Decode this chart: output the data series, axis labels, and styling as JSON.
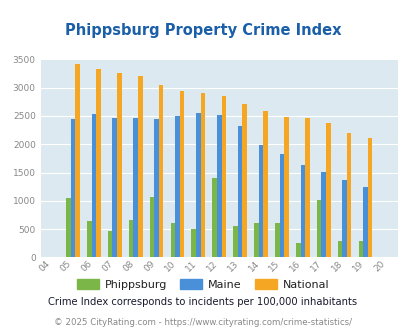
{
  "title": "Phippsburg Property Crime Index",
  "years": [
    2004,
    2005,
    2006,
    2007,
    2008,
    2009,
    2010,
    2011,
    2012,
    2013,
    2014,
    2015,
    2016,
    2017,
    2018,
    2019,
    2020
  ],
  "phippsburg": [
    0,
    1050,
    650,
    470,
    660,
    1075,
    600,
    510,
    1400,
    550,
    600,
    600,
    250,
    1020,
    290,
    290,
    0
  ],
  "maine": [
    0,
    2440,
    2540,
    2460,
    2470,
    2440,
    2500,
    2560,
    2510,
    2320,
    1990,
    1820,
    1640,
    1510,
    1360,
    1240,
    0
  ],
  "national": [
    0,
    3410,
    3330,
    3260,
    3210,
    3040,
    2950,
    2910,
    2850,
    2720,
    2590,
    2490,
    2460,
    2380,
    2200,
    2110,
    0
  ],
  "phippsburg_color": "#7ab648",
  "maine_color": "#4a90d9",
  "national_color": "#f5a623",
  "bg_color": "#dce9f0",
  "title_color": "#1a5fa8",
  "subtitle": "Crime Index corresponds to incidents per 100,000 inhabitants",
  "footer": "© 2025 CityRating.com - https://www.cityrating.com/crime-statistics/",
  "ylim": [
    0,
    3500
  ],
  "yticks": [
    0,
    500,
    1000,
    1500,
    2000,
    2500,
    3000,
    3500
  ],
  "figsize": [
    4.06,
    3.3
  ],
  "dpi": 100
}
